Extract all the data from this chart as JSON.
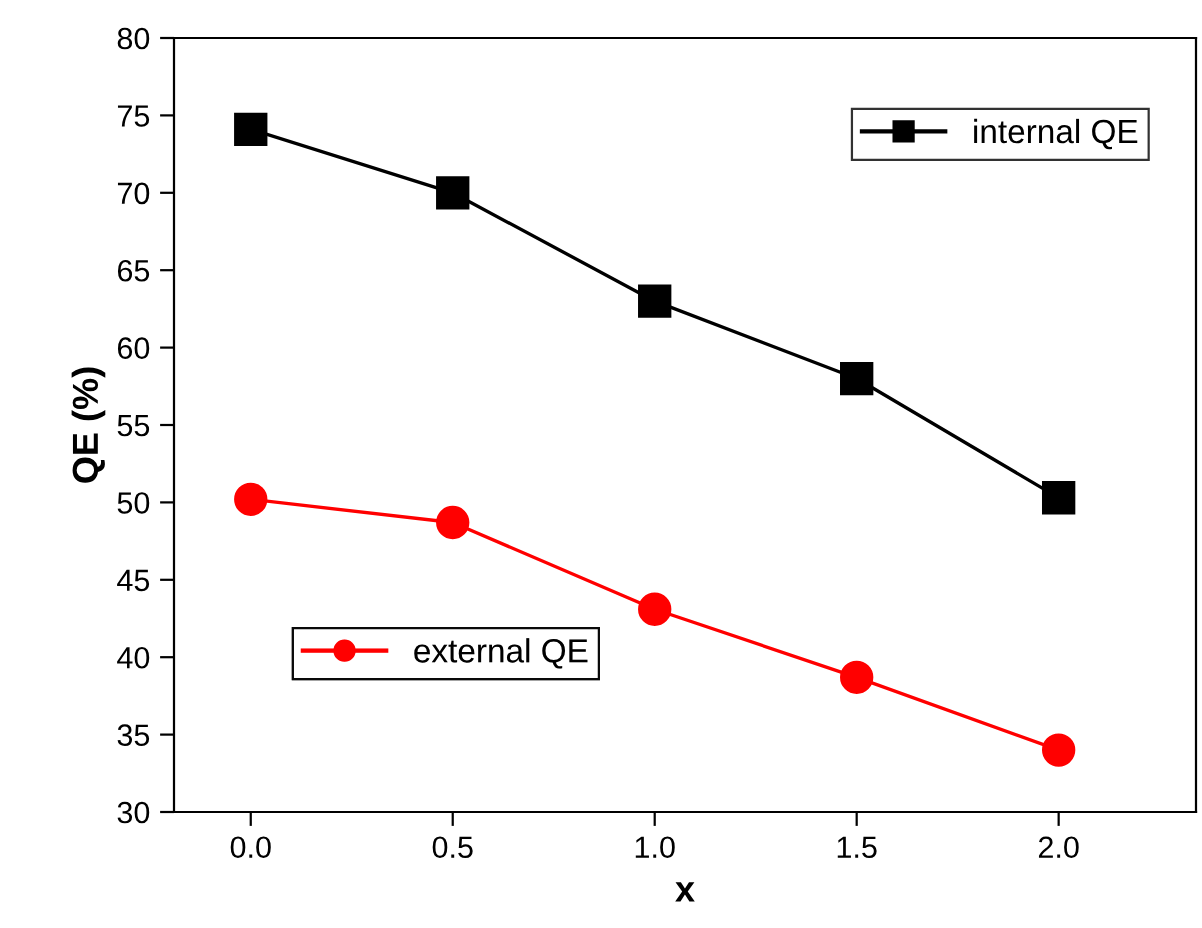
{
  "chart_data": {
    "type": "line",
    "xlabel": "x",
    "ylabel": "QE (%)",
    "x": [
      0.0,
      0.5,
      1.0,
      1.5,
      2.0
    ],
    "series": [
      {
        "name": "internal QE",
        "color": "#000000",
        "marker": "square",
        "values": [
          74.1,
          70.0,
          63.0,
          58.0,
          50.3
        ]
      },
      {
        "name": "external QE",
        "color": "#ff0000",
        "marker": "circle",
        "values": [
          50.2,
          48.7,
          43.1,
          38.7,
          34.0
        ]
      }
    ],
    "xlim": [
      -0.19,
      2.34
    ],
    "ylim": [
      30,
      80
    ],
    "xticks": [
      {
        "value": 0.0,
        "label": "0.0"
      },
      {
        "value": 0.5,
        "label": "0.5"
      },
      {
        "value": 1.0,
        "label": "1.0"
      },
      {
        "value": 1.5,
        "label": "1.5"
      },
      {
        "value": 2.0,
        "label": "2.0"
      }
    ],
    "yticks": [
      30,
      35,
      40,
      45,
      50,
      55,
      60,
      65,
      70,
      75,
      80
    ],
    "legend": [
      "top right",
      "lower left"
    ],
    "line_style": "solid",
    "grid": false
  }
}
